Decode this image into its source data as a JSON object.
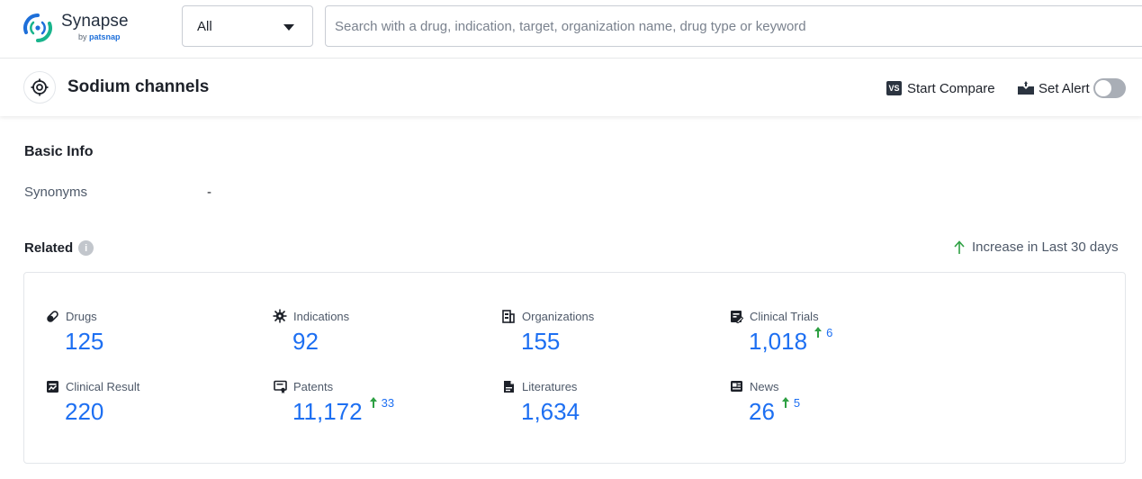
{
  "app": {
    "logo_name": "Synapse",
    "logo_by": "by",
    "logo_brand": "patsnap"
  },
  "search": {
    "scope_value": "All",
    "placeholder": "Search with a drug, indication, target, organization name, drug type or keyword"
  },
  "header": {
    "title": "Sodium channels",
    "compare_badge": "VS",
    "compare_label": "Start Compare",
    "alert_label": "Set Alert",
    "alert_enabled": false
  },
  "basic_info": {
    "title": "Basic Info",
    "synonyms_label": "Synonyms",
    "synonyms_value": "-"
  },
  "related": {
    "title": "Related",
    "info_glyph": "i",
    "legend_label": "Increase in Last 30 days",
    "items": [
      {
        "label": "Drugs",
        "value": "125",
        "increase": "",
        "icon": "pill-icon"
      },
      {
        "label": "Indications",
        "value": "92",
        "increase": "",
        "icon": "virus-icon"
      },
      {
        "label": "Organizations",
        "value": "155",
        "increase": "",
        "icon": "building-icon"
      },
      {
        "label": "Clinical Trials",
        "value": "1,018",
        "increase": "6",
        "icon": "clipboard-icon"
      },
      {
        "label": "Clinical Result",
        "value": "220",
        "increase": "",
        "icon": "report-icon"
      },
      {
        "label": "Patents",
        "value": "11,172",
        "increase": "33",
        "icon": "certificate-icon"
      },
      {
        "label": "Literatures",
        "value": "1,634",
        "increase": "",
        "icon": "document-icon"
      },
      {
        "label": "News",
        "value": "26",
        "increase": "5",
        "icon": "newspaper-icon"
      }
    ]
  },
  "colors": {
    "accent": "#1d6ff2",
    "increase_arrow": "#2ea043",
    "brand_green": "#19b48c",
    "brand_blue": "#1e6fd9"
  }
}
